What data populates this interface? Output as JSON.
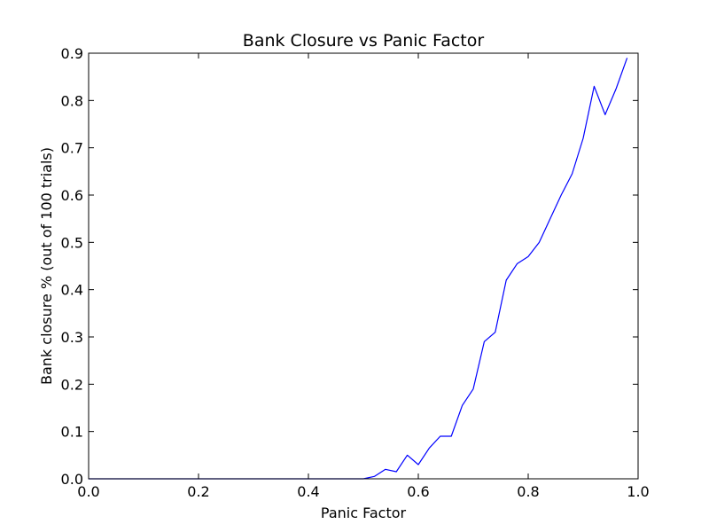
{
  "chart_data": {
    "type": "line",
    "title": "Bank Closure vs Panic Factor",
    "xlabel": "Panic Factor",
    "ylabel": "Bank closure % (out of 100 trials)",
    "xlim": [
      0.0,
      1.0
    ],
    "ylim": [
      0.0,
      0.9
    ],
    "xticks": [
      "0.0",
      "0.2",
      "0.4",
      "0.6",
      "0.8",
      "1.0"
    ],
    "yticks": [
      "0.0",
      "0.1",
      "0.2",
      "0.3",
      "0.4",
      "0.5",
      "0.6",
      "0.7",
      "0.8",
      "0.9"
    ],
    "grid": false,
    "line_color": "#0000ff",
    "series": [
      {
        "x": [
          0.0,
          0.02,
          0.04,
          0.06,
          0.08,
          0.1,
          0.12,
          0.14,
          0.16,
          0.18,
          0.2,
          0.22,
          0.24,
          0.26,
          0.28,
          0.3,
          0.32,
          0.34,
          0.36,
          0.38,
          0.4,
          0.42,
          0.44,
          0.46,
          0.48,
          0.5,
          0.52,
          0.54,
          0.56,
          0.58,
          0.6,
          0.62,
          0.64,
          0.66,
          0.68,
          0.7,
          0.72,
          0.74,
          0.76,
          0.78,
          0.8,
          0.82,
          0.84,
          0.86,
          0.88,
          0.9,
          0.92,
          0.94,
          0.96,
          0.98
        ],
        "values": [
          0,
          0,
          0,
          0,
          0,
          0,
          0,
          0,
          0,
          0,
          0,
          0,
          0,
          0,
          0,
          0,
          0,
          0,
          0,
          0,
          0,
          0,
          0,
          0,
          0,
          0,
          0.005,
          0.02,
          0.015,
          0.05,
          0.03,
          0.065,
          0.09,
          0.09,
          0.155,
          0.19,
          0.29,
          0.31,
          0.42,
          0.455,
          0.47,
          0.5,
          0.55,
          0.6,
          0.645,
          0.72,
          0.83,
          0.77,
          0.825,
          0.89
        ]
      }
    ]
  }
}
